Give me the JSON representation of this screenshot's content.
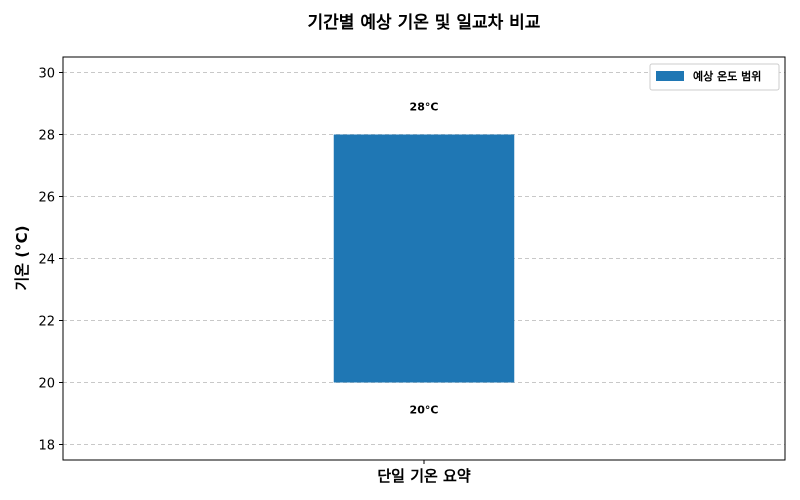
{
  "chart_data": {
    "type": "bar",
    "title": "기간별 예상 기온 및 일교차 비교",
    "xlabel": "",
    "ylabel": "기온 (°C)",
    "ylim": [
      17.5,
      30.5
    ],
    "yticks": [
      18,
      20,
      22,
      24,
      26,
      28,
      30
    ],
    "grid": "y-dashed",
    "legend_position": "top-right",
    "categories": [
      "단일 기온 요약"
    ],
    "series": [
      {
        "name": "예상 온도 범위",
        "color": "#1f77b4",
        "values": [
          [
            20,
            28
          ]
        ]
      }
    ],
    "data_labels": {
      "low": "20°C",
      "high": "28°C"
    }
  }
}
